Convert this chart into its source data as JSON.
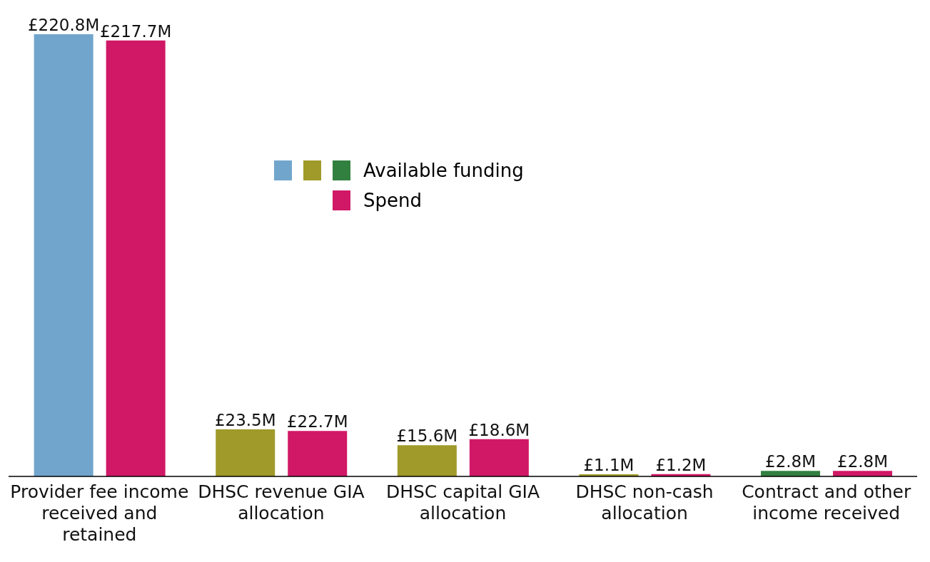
{
  "chart_data": {
    "type": "bar",
    "categories": [
      "Provider fee income received and retained",
      "DHSC revenue GIA allocation",
      "DHSC capital GIA allocation",
      "DHSC non-cash allocation",
      "Contract and other income received"
    ],
    "series": [
      {
        "name": "Available funding",
        "colors": [
          "#71a5cc",
          "#a09a2a",
          "#a09a2a",
          "#a09a2a",
          "#32803f"
        ],
        "values": [
          220.8,
          23.5,
          15.6,
          1.1,
          2.8
        ],
        "value_labels": [
          "£220.8M",
          "£23.5M",
          "£15.6M",
          "£1.1M",
          "£2.8M"
        ]
      },
      {
        "name": "Spend",
        "color": "#d01866",
        "values": [
          217.7,
          22.7,
          18.6,
          1.2,
          2.8
        ],
        "value_labels": [
          "£217.7M",
          "£22.7M",
          "£18.6M",
          "£1.2M",
          "£2.8M"
        ]
      }
    ],
    "legend": "top",
    "grid": false
  }
}
